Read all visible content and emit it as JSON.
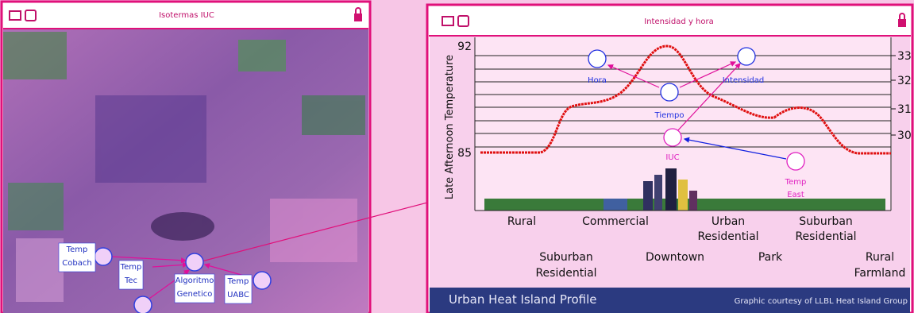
{
  "windows": [
    {
      "title": "Isotermas IUC",
      "nodes": [
        {
          "label": [
            "Temp",
            "Cobach"
          ]
        },
        {
          "label": [
            "Temp",
            "Tec"
          ]
        },
        {
          "label": [
            "Algoritmo",
            "Genetico"
          ]
        },
        {
          "label": [
            "Temp",
            "UABC"
          ]
        }
      ]
    },
    {
      "title": "Intensidad y hora",
      "y_axis_label": "Late Afternoon Temperature",
      "left_ticks": [
        "92",
        "85"
      ],
      "right_ticks": [
        "33",
        "32",
        "31",
        "30"
      ],
      "zones_top": [
        [
          "Rural"
        ],
        [
          "Commercial"
        ],
        [
          "Urban",
          "Residential"
        ],
        [
          "Suburban",
          "Residential"
        ]
      ],
      "zones_bottom": [
        [
          "Suburban",
          "Residential"
        ],
        [
          "Downtown"
        ],
        [
          "Park"
        ],
        [
          "Rural",
          "Farmland"
        ]
      ],
      "nodes": [
        {
          "label": [
            "Hora"
          ]
        },
        {
          "label": [
            "Tiempo"
          ]
        },
        {
          "label": [
            "Intensidad"
          ]
        },
        {
          "label": [
            "IUC"
          ]
        },
        {
          "label": [
            "Temp",
            "East"
          ]
        }
      ],
      "footer": {
        "title": "Urban Heat Island Profile",
        "credit": "Graphic courtesy of LLBL Heat Island Group"
      }
    }
  ]
}
